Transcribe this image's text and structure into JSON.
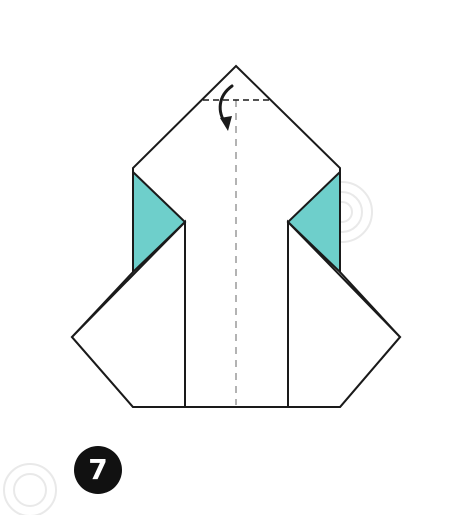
{
  "step": {
    "number": "7",
    "fold_icon": "curved-arrow-down-icon"
  },
  "colors": {
    "paper": "#ffffff",
    "outline": "#1a1a1a",
    "accent": "#6ecfcb",
    "fold_line": "#9a9a9a",
    "badge": "#111111",
    "badge_text": "#ffffff",
    "watermark": "#e8e8e8"
  }
}
